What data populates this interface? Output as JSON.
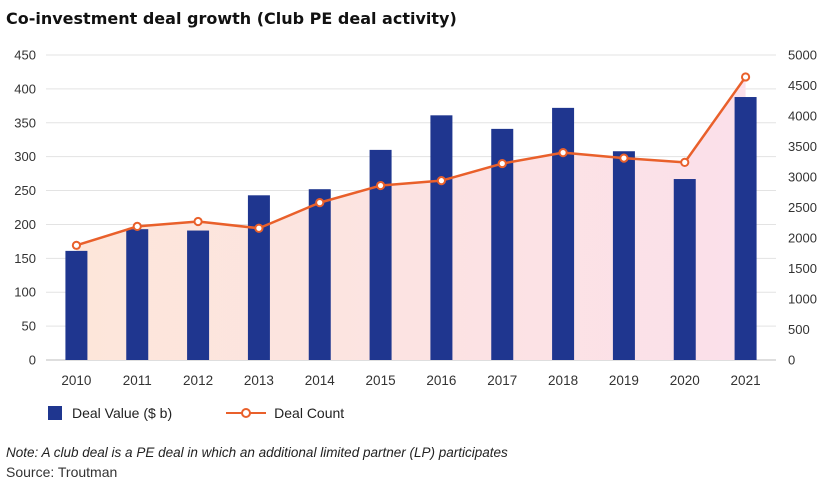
{
  "title": "Co-investment deal growth (Club PE deal activity)",
  "note": "Note: A club deal is a PE deal in which an additional limited partner (LP) participates",
  "source": "Source: Troutman",
  "chart_data": {
    "type": "bar",
    "categories": [
      "2010",
      "2011",
      "2012",
      "2013",
      "2014",
      "2015",
      "2016",
      "2017",
      "2018",
      "2019",
      "2020",
      "2021"
    ],
    "series": [
      {
        "name": "Deal Value ($ b)",
        "type": "bar",
        "axis": "left",
        "color": "#1f368f",
        "values": [
          161,
          193,
          191,
          243,
          252,
          310,
          361,
          341,
          372,
          308,
          267,
          388
        ]
      },
      {
        "name": "Deal Count",
        "type": "line",
        "axis": "right",
        "color": "#e9602b",
        "values": [
          1880,
          2190,
          2270,
          2160,
          2580,
          2860,
          2940,
          3220,
          3400,
          3310,
          3240,
          4640
        ]
      }
    ],
    "y_left": {
      "min": 0,
      "max": 450,
      "ticks": [
        "0",
        "50",
        "100",
        "150",
        "200",
        "250",
        "300",
        "350",
        "400",
        "450"
      ]
    },
    "y_right": {
      "min": 0,
      "max": 5000,
      "ticks": [
        "0",
        "500",
        "1000",
        "1500",
        "2000",
        "2500",
        "3000",
        "3500",
        "4000",
        "4500",
        "5000"
      ]
    },
    "grid": true,
    "legend": "bottom-left"
  }
}
